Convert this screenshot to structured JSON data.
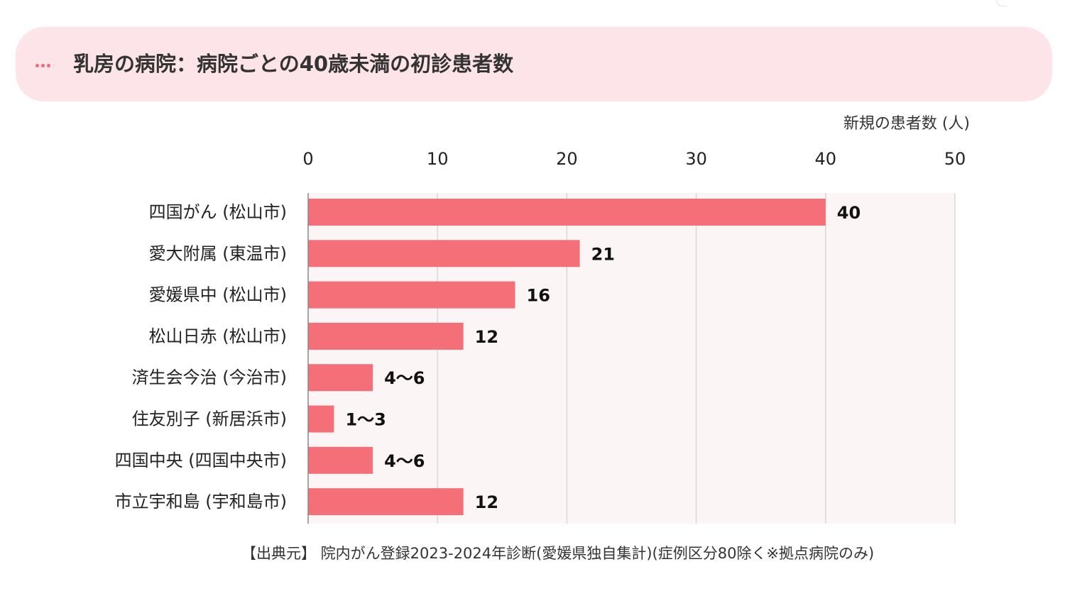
{
  "header": {
    "title": "乳房の病院：病院ごとの40歳未満の初診患者数"
  },
  "colors": {
    "bar": "#f46f77",
    "plot_background": "#fcf5f5",
    "header_background": "#fde4e8",
    "accent": "#f26b7a",
    "gridline": "#d8d8d8"
  },
  "chart_data": {
    "type": "bar",
    "orientation": "horizontal",
    "unit_label": "新規の患者数 (人)",
    "xlim": [
      0,
      50
    ],
    "x_ticks": [
      0,
      10,
      20,
      30,
      40,
      50
    ],
    "x_tick_labels": [
      "0",
      "10",
      "20",
      "30",
      "40",
      "50"
    ],
    "x_axis_position": "top",
    "grid": true,
    "categories": [
      "四国がん (松山市)",
      "愛大附属 (東温市)",
      "愛媛県中 (松山市)",
      "松山日赤 (松山市)",
      "済生会今治 (今治市)",
      "住友別子 (新居浜市)",
      "四国中央 (四国中央市)",
      "市立宇和島 (宇和島市)"
    ],
    "values": [
      40,
      21,
      16,
      12,
      5,
      2,
      5,
      12
    ],
    "value_labels": [
      "40",
      "21",
      "16",
      "12",
      "4～6",
      "1～3",
      "4～6",
      "12"
    ]
  },
  "footer": {
    "source": "【出典元】 院内がん登録2023-2024年診断(愛媛県独自集計)(症例区分80除く※拠点病院のみ)"
  }
}
